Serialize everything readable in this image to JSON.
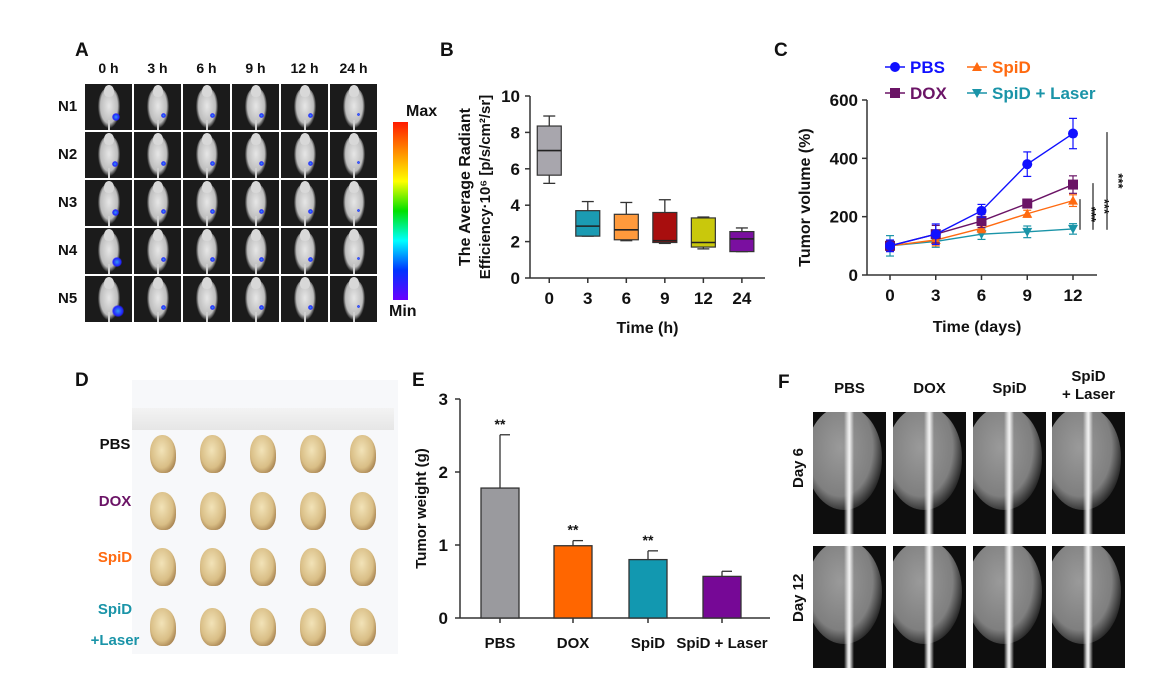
{
  "panels": {
    "A": {
      "label": "A",
      "columns": [
        "0 h",
        "3 h",
        "6 h",
        "9 h",
        "12 h",
        "24 h"
      ],
      "rows": [
        "N1",
        "N2",
        "N3",
        "N4",
        "N5"
      ],
      "colorbar": {
        "max_label": "Max",
        "min_label": "Min",
        "colors": [
          "#ff1a00",
          "#ff8c00",
          "#ffff00",
          "#00e000",
          "#00ffff",
          "#0033ff",
          "#6a00ff"
        ]
      }
    },
    "B": {
      "label": "B"
    },
    "C": {
      "label": "C"
    },
    "D": {
      "label": "D",
      "groups": [
        {
          "name": "PBS",
          "color": "#111111"
        },
        {
          "name": "DOX",
          "color": "#6b1466"
        },
        {
          "name": "SpiD",
          "color": "#ff6a10"
        },
        {
          "name": "SpiD",
          "name2": "+Laser",
          "color": "#1a94a8"
        }
      ]
    },
    "E": {
      "label": "E"
    },
    "F": {
      "label": "F",
      "columns": [
        "PBS",
        "DOX",
        "SpiD",
        "SpiD",
        "+ Laser"
      ],
      "rows": [
        "Day 6",
        "Day 12"
      ]
    }
  },
  "chart_data": [
    {
      "panel": "B",
      "type": "box",
      "xlabel": "Time (h)",
      "ylabel_line1": "The Average Radiant",
      "ylabel_line2": "Efficiency·10⁶ [p/s/cm²/sr]",
      "categories": [
        "0",
        "3",
        "6",
        "9",
        "12",
        "24"
      ],
      "ylim": [
        0,
        10
      ],
      "yticks": [
        "0",
        "2",
        "4",
        "6",
        "8",
        "10"
      ],
      "boxes": [
        {
          "min": 5.2,
          "q1": 5.65,
          "median": 7.0,
          "q3": 8.35,
          "max": 8.9,
          "color": "#a8a6ad"
        },
        {
          "min": 2.3,
          "q1": 2.3,
          "median": 2.85,
          "q3": 3.7,
          "max": 4.2,
          "color": "#1b9bb3"
        },
        {
          "min": 2.05,
          "q1": 2.1,
          "median": 2.65,
          "q3": 3.5,
          "max": 4.15,
          "color": "#ff9a3c"
        },
        {
          "min": 1.9,
          "q1": 1.95,
          "median": 2.05,
          "q3": 3.6,
          "max": 4.3,
          "color": "#a80e0e"
        },
        {
          "min": 1.6,
          "q1": 1.7,
          "median": 1.95,
          "q3": 3.3,
          "max": 3.35,
          "color": "#c9c80c"
        },
        {
          "min": 1.45,
          "q1": 1.45,
          "median": 2.15,
          "q3": 2.55,
          "max": 2.75,
          "color": "#7a0fa0"
        }
      ]
    },
    {
      "panel": "C",
      "type": "line",
      "xlabel": "Time (days)",
      "ylabel": "Tumor volume (%)",
      "x": [
        0,
        3,
        6,
        9,
        12
      ],
      "xticks": [
        "0",
        "3",
        "6",
        "9",
        "12"
      ],
      "ylim": [
        0,
        600
      ],
      "yticks": [
        "0",
        "200",
        "400",
        "600"
      ],
      "legend": "top",
      "series": [
        {
          "name": "PBS",
          "color": "#1010ff",
          "marker": "circle",
          "values": [
            100,
            140,
            220,
            380,
            485
          ],
          "err": [
            20,
            35,
            22,
            42,
            52
          ]
        },
        {
          "name": "SpiD",
          "color": "#ff6a10",
          "marker": "triangle-up",
          "values": [
            100,
            120,
            160,
            210,
            255
          ],
          "err": [
            15,
            20,
            15,
            12,
            20
          ]
        },
        {
          "name": "DOX",
          "color": "#6b1466",
          "marker": "square",
          "values": [
            100,
            140,
            185,
            245,
            310
          ],
          "err": [
            18,
            30,
            22,
            15,
            30
          ]
        },
        {
          "name": "SpiD + Laser",
          "color": "#1a94a8",
          "marker": "triangle-down",
          "values": [
            100,
            115,
            140,
            148,
            158
          ],
          "err": [
            35,
            20,
            18,
            20,
            18
          ]
        }
      ],
      "significance": [
        {
          "label": "***",
          "from_value": 155,
          "to_value": 260
        },
        {
          "label": "***",
          "from_value": 155,
          "to_value": 315
        },
        {
          "label": "***",
          "from_value": 155,
          "to_value": 490
        }
      ]
    },
    {
      "panel": "E",
      "type": "bar",
      "xlabel": "",
      "ylabel": "Tumor weight (g)",
      "categories": [
        "PBS",
        "DOX",
        "SpiD",
        "SpiD + Laser"
      ],
      "values": [
        1.78,
        0.99,
        0.8,
        0.57
      ],
      "err": [
        0.73,
        0.07,
        0.12,
        0.07
      ],
      "colors": [
        "#9a9a9e",
        "#ff6600",
        "#1298b0",
        "#760896"
      ],
      "annotations": [
        "**",
        "**",
        "**",
        ""
      ],
      "ylim": [
        0,
        3
      ],
      "yticks": [
        "0",
        "1",
        "2",
        "3"
      ]
    }
  ]
}
